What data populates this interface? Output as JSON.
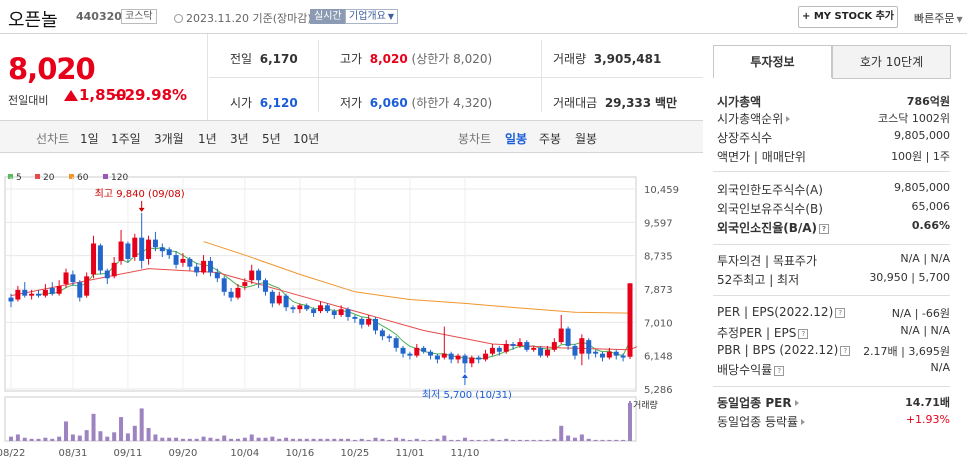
{
  "header": {
    "name": "오픈놀",
    "code": "440320",
    "market": "코스닥",
    "date_text": "2023.11.20 기준(장마감)",
    "live_label": "실시간",
    "corp_label": "기업개요",
    "mystock_label": "MY STOCK 추가",
    "quick_label": "빠른주문"
  },
  "price": {
    "current": "8,020",
    "change_label": "전일대비",
    "change": "1,850",
    "change_pct": "+29.98%"
  },
  "quote": {
    "prev_label": "전일",
    "prev": "6,170",
    "high_label": "고가",
    "high": "8,020",
    "high_note": "(상한가 8,020)",
    "volume_label": "거래량",
    "volume": "3,905,481",
    "open_label": "시가",
    "open": "6,120",
    "low_label": "저가",
    "low": "6,060",
    "low_note": "(하한가 4,320)",
    "amount_label": "거래대금",
    "amount": "29,333",
    "amount_unit": "백만"
  },
  "period": {
    "line_label": "선차트",
    "line_items": [
      "1일",
      "1주일",
      "3개월",
      "1년",
      "3년",
      "5년",
      "10년"
    ],
    "candle_label": "봉차트",
    "candle_items": [
      "일봉",
      "주봉",
      "월봉"
    ],
    "candle_selected": 0
  },
  "chart_data": {
    "type": "candlestick",
    "ma_legend": [
      {
        "name": "5",
        "color": "#5cb85c"
      },
      {
        "name": "20",
        "color": "#e64b4b"
      },
      {
        "name": "60",
        "color": "#f0962d"
      },
      {
        "name": "120",
        "color": "#9b59b6"
      }
    ],
    "y_ticks": [
      "10,459",
      "9,597",
      "8,735",
      "7,873",
      "7,010",
      "6,148",
      "5,286"
    ],
    "ylim": [
      5286,
      10459
    ],
    "x_ticks": [
      "08/22",
      "08/31",
      "09/11",
      "09/20",
      "10/04",
      "10/16",
      "10/25",
      "11/01",
      "11/10"
    ],
    "high_annotation": "최고 9,840 (09/08)",
    "low_annotation": "최저 5,700 (10/31)",
    "volume_label": "거래량",
    "candles": [
      {
        "o": 7650,
        "c": 7550,
        "h": 7750,
        "l": 7400,
        "v": 4
      },
      {
        "o": 7600,
        "c": 7850,
        "h": 7950,
        "l": 7550,
        "v": 6
      },
      {
        "o": 7850,
        "c": 7700,
        "h": 8050,
        "l": 7650,
        "v": 3
      },
      {
        "o": 7700,
        "c": 7750,
        "h": 7850,
        "l": 7600,
        "v": 2
      },
      {
        "o": 7750,
        "c": 7700,
        "h": 7850,
        "l": 7650,
        "v": 2
      },
      {
        "o": 7700,
        "c": 7850,
        "h": 8000,
        "l": 7650,
        "v": 3
      },
      {
        "o": 7900,
        "c": 7750,
        "h": 8050,
        "l": 7700,
        "v": 2
      },
      {
        "o": 7750,
        "c": 7950,
        "h": 8100,
        "l": 7700,
        "v": 4
      },
      {
        "o": 8000,
        "c": 8300,
        "h": 8400,
        "l": 7900,
        "v": 18
      },
      {
        "o": 8250,
        "c": 8050,
        "h": 8350,
        "l": 7950,
        "v": 6
      },
      {
        "o": 8050,
        "c": 7650,
        "h": 8100,
        "l": 7550,
        "v": 5
      },
      {
        "o": 7700,
        "c": 8200,
        "h": 8300,
        "l": 7650,
        "v": 10
      },
      {
        "o": 8250,
        "c": 9050,
        "h": 9250,
        "l": 8150,
        "v": 25
      },
      {
        "o": 9000,
        "c": 8350,
        "h": 9050,
        "l": 8250,
        "v": 9
      },
      {
        "o": 8350,
        "c": 8150,
        "h": 8400,
        "l": 8000,
        "v": 4
      },
      {
        "o": 8200,
        "c": 8550,
        "h": 8700,
        "l": 8150,
        "v": 8
      },
      {
        "o": 8600,
        "c": 9100,
        "h": 9400,
        "l": 8500,
        "v": 22
      },
      {
        "o": 9050,
        "c": 8650,
        "h": 9100,
        "l": 8550,
        "v": 7
      },
      {
        "o": 8700,
        "c": 9200,
        "h": 9300,
        "l": 8600,
        "v": 14
      },
      {
        "o": 9200,
        "c": 8600,
        "h": 9840,
        "l": 8400,
        "v": 30
      },
      {
        "o": 8650,
        "c": 9150,
        "h": 9250,
        "l": 8500,
        "v": 12
      },
      {
        "o": 9150,
        "c": 8950,
        "h": 9350,
        "l": 8850,
        "v": 6
      },
      {
        "o": 8950,
        "c": 8850,
        "h": 9050,
        "l": 8700,
        "v": 3
      },
      {
        "o": 8900,
        "c": 8750,
        "h": 8950,
        "l": 8650,
        "v": 3
      },
      {
        "o": 8750,
        "c": 8500,
        "h": 8850,
        "l": 8400,
        "v": 3
      },
      {
        "o": 8550,
        "c": 8650,
        "h": 8800,
        "l": 8450,
        "v": 2
      },
      {
        "o": 8650,
        "c": 8450,
        "h": 8700,
        "l": 8350,
        "v": 2
      },
      {
        "o": 8450,
        "c": 8300,
        "h": 8550,
        "l": 8200,
        "v": 2
      },
      {
        "o": 8300,
        "c": 8600,
        "h": 8750,
        "l": 8250,
        "v": 4
      },
      {
        "o": 8600,
        "c": 8300,
        "h": 8700,
        "l": 8200,
        "v": 3
      },
      {
        "o": 8300,
        "c": 8150,
        "h": 8400,
        "l": 8050,
        "v": 2
      },
      {
        "o": 8150,
        "c": 7800,
        "h": 8200,
        "l": 7700,
        "v": 5
      },
      {
        "o": 7800,
        "c": 7650,
        "h": 7900,
        "l": 7550,
        "v": 2
      },
      {
        "o": 7650,
        "c": 7900,
        "h": 8000,
        "l": 7600,
        "v": 2
      },
      {
        "o": 7950,
        "c": 8050,
        "h": 8150,
        "l": 7850,
        "v": 3
      },
      {
        "o": 8100,
        "c": 8350,
        "h": 8500,
        "l": 8000,
        "v": 6
      },
      {
        "o": 8350,
        "c": 8100,
        "h": 8400,
        "l": 7900,
        "v": 3
      },
      {
        "o": 8100,
        "c": 7800,
        "h": 8150,
        "l": 7700,
        "v": 3
      },
      {
        "o": 7800,
        "c": 7500,
        "h": 7850,
        "l": 7400,
        "v": 4
      },
      {
        "o": 7500,
        "c": 7700,
        "h": 7800,
        "l": 7450,
        "v": 2
      },
      {
        "o": 7700,
        "c": 7400,
        "h": 7750,
        "l": 7300,
        "v": 3
      },
      {
        "o": 7400,
        "c": 7350,
        "h": 7450,
        "l": 7250,
        "v": 2
      },
      {
        "o": 7350,
        "c": 7450,
        "h": 7500,
        "l": 7250,
        "v": 2
      },
      {
        "o": 7450,
        "c": 7350,
        "h": 7500,
        "l": 7300,
        "v": 2
      },
      {
        "o": 7350,
        "c": 7250,
        "h": 7400,
        "l": 7150,
        "v": 2
      },
      {
        "o": 7300,
        "c": 7450,
        "h": 7550,
        "l": 7250,
        "v": 2
      },
      {
        "o": 7450,
        "c": 7300,
        "h": 7500,
        "l": 7250,
        "v": 2
      },
      {
        "o": 7300,
        "c": 7200,
        "h": 7350,
        "l": 7100,
        "v": 2
      },
      {
        "o": 7200,
        "c": 7350,
        "h": 7450,
        "l": 7150,
        "v": 2
      },
      {
        "o": 7350,
        "c": 7150,
        "h": 7400,
        "l": 7050,
        "v": 2
      },
      {
        "o": 7150,
        "c": 7100,
        "h": 7200,
        "l": 7000,
        "v": 1
      },
      {
        "o": 7100,
        "c": 6950,
        "h": 7150,
        "l": 6850,
        "v": 2
      },
      {
        "o": 6950,
        "c": 7100,
        "h": 7200,
        "l": 6900,
        "v": 1
      },
      {
        "o": 7100,
        "c": 6800,
        "h": 7150,
        "l": 6700,
        "v": 3
      },
      {
        "o": 6800,
        "c": 6650,
        "h": 6850,
        "l": 6550,
        "v": 2
      },
      {
        "o": 6650,
        "c": 6600,
        "h": 6700,
        "l": 6500,
        "v": 1
      },
      {
        "o": 6600,
        "c": 6350,
        "h": 6650,
        "l": 6250,
        "v": 3
      },
      {
        "o": 6350,
        "c": 6200,
        "h": 6400,
        "l": 6100,
        "v": 2
      },
      {
        "o": 6200,
        "c": 6150,
        "h": 6250,
        "l": 6050,
        "v": 1
      },
      {
        "o": 6150,
        "c": 6350,
        "h": 6450,
        "l": 6100,
        "v": 2
      },
      {
        "o": 6350,
        "c": 6250,
        "h": 6400,
        "l": 6200,
        "v": 1
      },
      {
        "o": 6250,
        "c": 6150,
        "h": 6300,
        "l": 6050,
        "v": 1
      },
      {
        "o": 6150,
        "c": 6050,
        "h": 6200,
        "l": 5950,
        "v": 2
      },
      {
        "o": 6100,
        "c": 6200,
        "h": 6900,
        "l": 6050,
        "v": 5
      },
      {
        "o": 6200,
        "c": 6050,
        "h": 6250,
        "l": 5950,
        "v": 1
      },
      {
        "o": 6050,
        "c": 6150,
        "h": 6200,
        "l": 5950,
        "v": 1
      },
      {
        "o": 6150,
        "c": 5950,
        "h": 6200,
        "l": 5700,
        "v": 3
      },
      {
        "o": 5950,
        "c": 6100,
        "h": 6150,
        "l": 5850,
        "v": 1
      },
      {
        "o": 6100,
        "c": 6050,
        "h": 6150,
        "l": 5950,
        "v": 1
      },
      {
        "o": 6050,
        "c": 6200,
        "h": 6300,
        "l": 6000,
        "v": 1
      },
      {
        "o": 6200,
        "c": 6350,
        "h": 6450,
        "l": 6150,
        "v": 2
      },
      {
        "o": 6350,
        "c": 6250,
        "h": 6400,
        "l": 6150,
        "v": 1
      },
      {
        "o": 6250,
        "c": 6450,
        "h": 6550,
        "l": 6200,
        "v": 2
      },
      {
        "o": 6450,
        "c": 6400,
        "h": 6500,
        "l": 6300,
        "v": 1
      },
      {
        "o": 6400,
        "c": 6500,
        "h": 6600,
        "l": 6350,
        "v": 1
      },
      {
        "o": 6500,
        "c": 6300,
        "h": 6550,
        "l": 6250,
        "v": 1
      },
      {
        "o": 6300,
        "c": 6350,
        "h": 6400,
        "l": 6250,
        "v": 1
      },
      {
        "o": 6350,
        "c": 6150,
        "h": 6400,
        "l": 6100,
        "v": 1
      },
      {
        "o": 6150,
        "c": 6300,
        "h": 6400,
        "l": 6100,
        "v": 1
      },
      {
        "o": 6300,
        "c": 6500,
        "h": 6600,
        "l": 6250,
        "v": 2
      },
      {
        "o": 6500,
        "c": 6850,
        "h": 7200,
        "l": 6450,
        "v": 14
      },
      {
        "o": 6850,
        "c": 6400,
        "h": 6900,
        "l": 6300,
        "v": 5
      },
      {
        "o": 6400,
        "c": 6150,
        "h": 6450,
        "l": 6050,
        "v": 3
      },
      {
        "o": 6200,
        "c": 6600,
        "h": 6700,
        "l": 5900,
        "v": 6
      },
      {
        "o": 6550,
        "c": 6200,
        "h": 6600,
        "l": 6050,
        "v": 2
      },
      {
        "o": 6250,
        "c": 6200,
        "h": 6300,
        "l": 6100,
        "v": 1
      },
      {
        "o": 6200,
        "c": 6100,
        "h": 6250,
        "l": 6000,
        "v": 1
      },
      {
        "o": 6100,
        "c": 6250,
        "h": 6350,
        "l": 6050,
        "v": 1
      },
      {
        "o": 6250,
        "c": 6150,
        "h": 6300,
        "l": 6050,
        "v": 1
      },
      {
        "o": 6150,
        "c": 6100,
        "h": 6200,
        "l": 6000,
        "v": 1
      },
      {
        "o": 6120,
        "c": 8020,
        "h": 8020,
        "l": 6060,
        "v": 35
      }
    ],
    "ma5_start": [
      7620,
      7680,
      7700,
      7720,
      7740
    ],
    "ma20_points": [
      [
        0,
        7700
      ],
      [
        20,
        8400
      ],
      [
        30,
        8300
      ],
      [
        40,
        7800
      ],
      [
        50,
        7300
      ],
      [
        60,
        6800
      ],
      [
        70,
        6450
      ],
      [
        80,
        6350
      ],
      [
        90,
        6300
      ],
      [
        91,
        6380
      ]
    ],
    "ma60_points": [
      [
        28,
        9100
      ],
      [
        34,
        8750
      ],
      [
        42,
        8250
      ],
      [
        50,
        7800
      ],
      [
        58,
        7600
      ],
      [
        66,
        7500
      ],
      [
        74,
        7380
      ],
      [
        82,
        7270
      ],
      [
        90,
        7250
      ]
    ]
  },
  "invest": {
    "tab_active": "투자정보",
    "tab_other": "호가 10단계",
    "rows": [
      {
        "k": "시가총액",
        "v": "786억원",
        "bold": true
      },
      {
        "k": "시가총액순위",
        "v": "코스닥 1002위",
        "tri": true
      },
      {
        "k": "상장주식수",
        "v": "9,805,000"
      },
      {
        "k": "액면가 | 매매단위",
        "v": "100원 | 1주"
      },
      {
        "k": "외국인한도주식수(A)",
        "v": "9,805,000"
      },
      {
        "k": "외국인보유주식수(B)",
        "v": "65,006"
      },
      {
        "k": "외국인소진율(B/A)",
        "v": "0.66%",
        "bold": true,
        "q": true
      },
      {
        "k": "투자의견 | 목표주가",
        "v": "N/A | N/A"
      },
      {
        "k": "52주최고 | 최저",
        "v": "30,950 | 5,700"
      },
      {
        "k": "PER | EPS(2022.12)",
        "v": "N/A | -66원",
        "q": true
      },
      {
        "k": "추정PER | EPS",
        "v": "N/A | N/A",
        "q": true
      },
      {
        "k": "PBR | BPS (2022.12)",
        "v": "2.17배 | 3,695원",
        "q": true
      },
      {
        "k": "배당수익률",
        "v": "N/A",
        "q": true
      },
      {
        "k": "동일업종 PER",
        "v": "14.71배",
        "bold": true,
        "tri": true
      },
      {
        "k": "동일업종 등락률",
        "v": "+1.93%",
        "tri": true,
        "red": true
      }
    ]
  }
}
